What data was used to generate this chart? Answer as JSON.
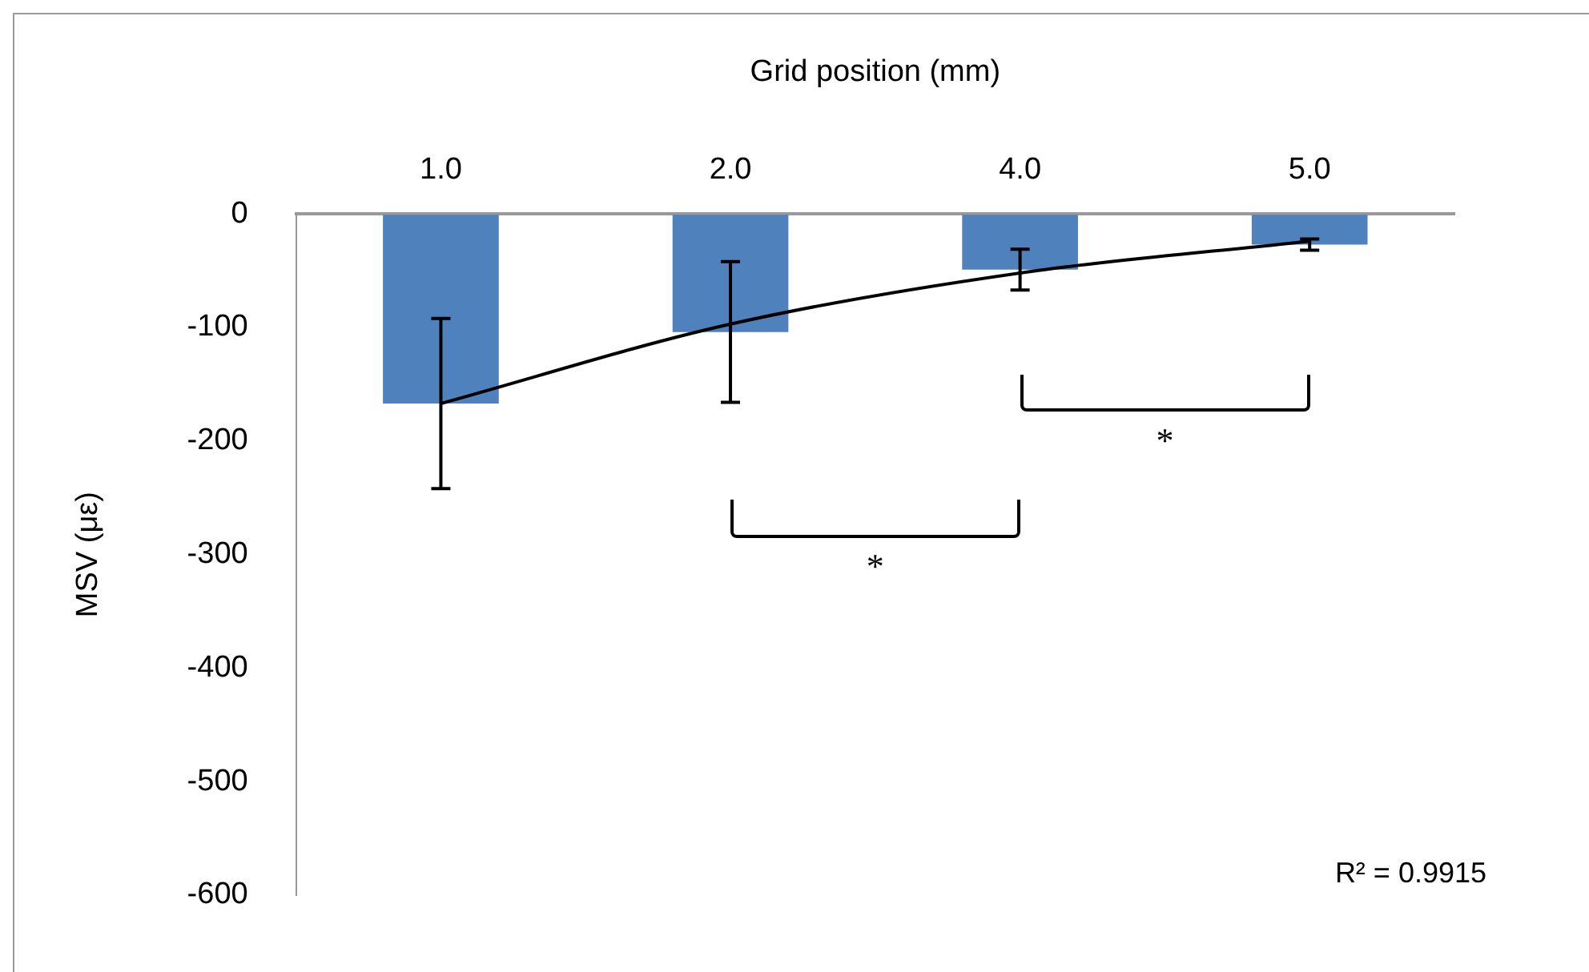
{
  "chart_data": {
    "type": "bar",
    "xlabel": "Grid position (mm)",
    "ylabel": "MSV (με)",
    "categories": [
      "1.0",
      "2.0",
      "4.0",
      "5.0"
    ],
    "series": [
      {
        "color": "#4f81bd",
        "values": [
          -167,
          -104,
          -49,
          -27
        ],
        "errors": [
          75,
          62,
          18,
          5
        ]
      },
      {
        "type": "line",
        "color": "#000000",
        "values": [
          -167,
          -97,
          -52,
          -24
        ]
      }
    ],
    "ylim": [
      -600,
      0
    ],
    "yticks": [
      -600,
      -500,
      -400,
      -300,
      -200,
      -100,
      0
    ],
    "grid": false,
    "legend": false,
    "marker": "none",
    "line_style": "solid",
    "annotations": [
      "*",
      "*",
      "R² = 0.9915"
    ]
  }
}
